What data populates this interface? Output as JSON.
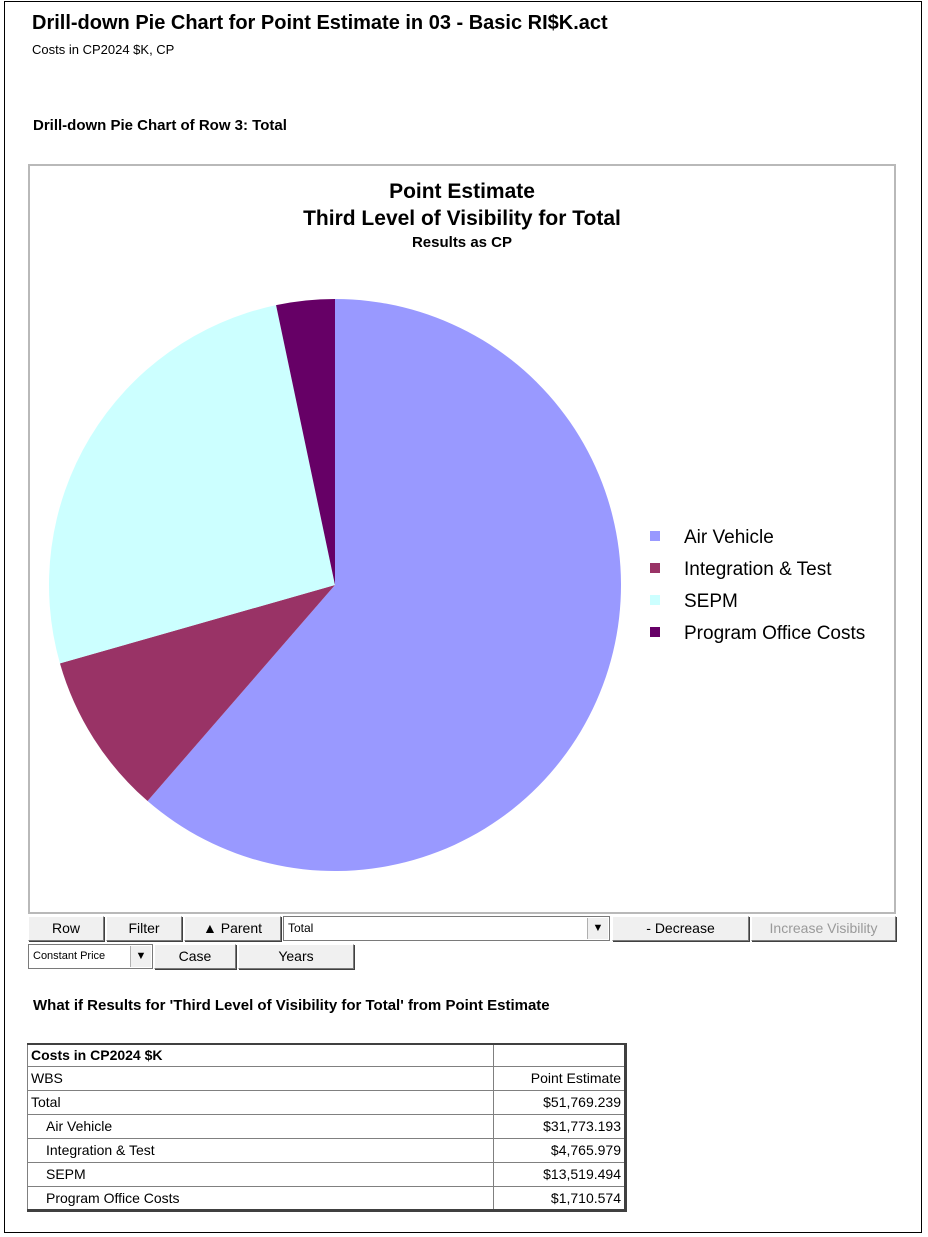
{
  "header": {
    "title": "Drill-down Pie Chart for Point Estimate in 03 - Basic RI$K.act",
    "subtitle": "Costs in CP2024 $K, CP",
    "section_heading": "Drill-down Pie Chart of Row 3: Total"
  },
  "chart_data": {
    "type": "pie",
    "title": "Point Estimate",
    "subtitle": "Third Level of Visibility for Total",
    "subtitle2": "Results as CP",
    "labels": [
      "Air Vehicle",
      "Integration & Test",
      "SEPM",
      "Program Office Costs"
    ],
    "values": [
      31773.193,
      4765.979,
      13519.494,
      1710.574
    ],
    "colors": [
      "#9999ff",
      "#993366",
      "#ccffff",
      "#660066"
    ],
    "legend_position": "right"
  },
  "toolbar": {
    "row_label": "Row",
    "filter_label": "Filter",
    "parent_label": "▲ Parent",
    "level_value": "Total",
    "decrease_label": "- Decrease",
    "increase_label": "Increase Visibility",
    "price_value": "Constant Price",
    "case_label": "Case",
    "years_label": "Years"
  },
  "results": {
    "heading": "What if Results for 'Third Level of Visibility for Total' from Point Estimate",
    "table_title": "Costs in CP2024 $K",
    "col_wbs": "WBS",
    "col_value": "Point Estimate",
    "rows": [
      {
        "wbs": "Total",
        "value": "$51,769.239"
      },
      {
        "wbs": "Air Vehicle",
        "value": "$31,773.193"
      },
      {
        "wbs": "Integration & Test",
        "value": "$4,765.979"
      },
      {
        "wbs": "SEPM",
        "value": "$13,519.494"
      },
      {
        "wbs": "Program Office Costs",
        "value": "$1,710.574"
      }
    ]
  }
}
